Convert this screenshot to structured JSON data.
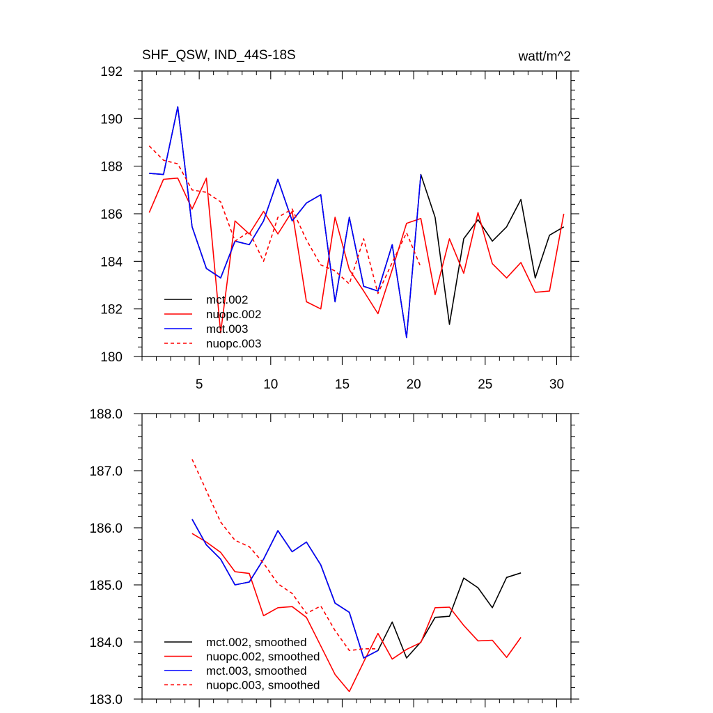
{
  "chart_data": [
    {
      "type": "line",
      "title_left": "SHF_QSW, IND_44S-18S",
      "title_right": "watt/m^2",
      "xlabel": "",
      "ylabel": "",
      "xlim": [
        1,
        31
      ],
      "ylim": [
        180,
        192
      ],
      "x_ticks": [
        5,
        10,
        15,
        20,
        25,
        30
      ],
      "x_tick_labels": [
        "5",
        "10",
        "15",
        "20",
        "25",
        "30"
      ],
      "y_ticks": [
        180,
        182,
        184,
        186,
        188,
        190,
        192
      ],
      "y_tick_labels": [
        "180",
        "182",
        "184",
        "186",
        "188",
        "190",
        "192"
      ],
      "legend_position": "bottom-left",
      "series": [
        {
          "name": "mct.002",
          "color": "#000000",
          "dash": false,
          "x": [
            1.5,
            2.5,
            3.5,
            4.5,
            5.5,
            6.5,
            7.5,
            8.5,
            9.5,
            10.5,
            11.5,
            12.5,
            13.5,
            14.5,
            15.5,
            16.5,
            17.5,
            18.5,
            19.5,
            20.5,
            21.5,
            22.5,
            23.5,
            24.5,
            25.5,
            26.5,
            27.5,
            28.5,
            29.5,
            30.5
          ],
          "values": [
            187.7,
            187.65,
            190.5,
            185.45,
            183.7,
            183.3,
            184.85,
            184.7,
            185.7,
            187.45,
            185.7,
            186.45,
            186.8,
            182.3,
            185.85,
            182.95,
            182.75,
            184.7,
            180.8,
            187.65,
            185.85,
            181.35,
            184.95,
            185.75,
            184.85,
            185.45,
            186.6,
            183.3,
            185.1,
            185.45
          ]
        },
        {
          "name": "nuopc.002",
          "color": "#ff0000",
          "dash": false,
          "x": [
            1.5,
            2.5,
            3.5,
            4.5,
            5.5,
            6.5,
            7.5,
            8.5,
            9.5,
            10.5,
            11.5,
            12.5,
            13.5,
            14.5,
            15.5,
            16.5,
            17.5,
            18.5,
            19.5,
            20.5,
            21.5,
            22.5,
            23.5,
            24.5,
            25.5,
            26.5,
            27.5,
            28.5,
            29.5,
            30.5
          ],
          "values": [
            186.05,
            187.45,
            187.5,
            186.2,
            187.5,
            181.0,
            185.7,
            185.15,
            186.1,
            185.15,
            186.1,
            182.3,
            182.0,
            185.85,
            183.65,
            182.75,
            181.8,
            183.65,
            185.6,
            185.8,
            182.6,
            184.95,
            183.5,
            186.05,
            183.9,
            183.3,
            183.95,
            182.7,
            182.75,
            186.0
          ]
        },
        {
          "name": "mct.003",
          "color": "#0000ff",
          "dash": false,
          "x": [
            1.5,
            2.5,
            3.5,
            4.5,
            5.5,
            6.5,
            7.5,
            8.5,
            9.5,
            10.5,
            11.5,
            12.5,
            13.5,
            14.5,
            15.5,
            16.5,
            17.5,
            18.5,
            19.5,
            20.5
          ],
          "values": [
            187.7,
            187.65,
            190.5,
            185.45,
            183.7,
            183.3,
            184.85,
            184.7,
            185.7,
            187.45,
            185.7,
            186.45,
            186.8,
            182.3,
            185.85,
            182.95,
            182.75,
            184.7,
            180.8,
            187.65
          ]
        },
        {
          "name": "nuopc.003",
          "color": "#ff0000",
          "dash": true,
          "x": [
            1.5,
            2.5,
            3.5,
            4.5,
            5.5,
            6.5,
            7.5,
            8.5,
            9.5,
            10.5,
            11.5,
            12.5,
            13.5,
            14.5,
            15.5,
            16.5,
            17.5,
            18.5,
            19.5,
            20.5
          ],
          "values": [
            188.85,
            188.25,
            188.1,
            187.0,
            186.9,
            186.5,
            184.85,
            185.25,
            184.0,
            185.85,
            186.2,
            184.9,
            183.85,
            183.6,
            183.05,
            184.95,
            182.65,
            183.95,
            185.2,
            183.75
          ]
        }
      ]
    },
    {
      "type": "line",
      "title_left": "",
      "title_right": "",
      "xlabel": "",
      "ylabel": "",
      "xlim": [
        1,
        31
      ],
      "ylim": [
        183,
        188
      ],
      "x_ticks": [
        5,
        10,
        15,
        20,
        25,
        30
      ],
      "x_tick_labels": [],
      "y_ticks": [
        183,
        184,
        185,
        186,
        187,
        188
      ],
      "y_tick_labels": [
        "183.0",
        "184.0",
        "185.0",
        "186.0",
        "187.0",
        "188.0"
      ],
      "legend_position": "bottom-left",
      "series": [
        {
          "name": "mct.002, smoothed",
          "color": "#000000",
          "dash": false,
          "x": [
            4.5,
            5.5,
            6.5,
            7.5,
            8.5,
            9.5,
            10.5,
            11.5,
            12.5,
            13.5,
            14.5,
            15.5,
            16.5,
            17.5,
            18.5,
            19.5,
            20.5,
            21.5,
            22.5,
            23.5,
            24.5,
            25.5,
            26.5,
            27.5
          ],
          "values": [
            186.15,
            185.7,
            185.45,
            185.0,
            185.05,
            185.45,
            185.95,
            185.58,
            185.75,
            185.35,
            184.68,
            184.52,
            183.72,
            183.85,
            184.35,
            183.72,
            184.0,
            184.43,
            184.45,
            185.12,
            184.95,
            184.6,
            185.13,
            185.21
          ]
        },
        {
          "name": "nuopc.002, smoothed",
          "color": "#ff0000",
          "dash": false,
          "x": [
            4.5,
            5.5,
            6.5,
            7.5,
            8.5,
            9.5,
            10.5,
            11.5,
            12.5,
            13.5,
            14.5,
            15.5,
            16.5,
            17.5,
            18.5,
            19.5,
            20.5,
            21.5,
            22.5,
            23.5,
            24.5,
            25.5,
            26.5,
            27.5
          ],
          "values": [
            185.9,
            185.75,
            185.57,
            185.23,
            185.2,
            184.46,
            184.6,
            184.62,
            184.43,
            183.93,
            183.43,
            183.13,
            183.65,
            184.15,
            183.7,
            183.87,
            183.99,
            184.6,
            184.61,
            184.29,
            184.02,
            184.03,
            183.73,
            184.08
          ]
        },
        {
          "name": "mct.003, smoothed",
          "color": "#0000ff",
          "dash": false,
          "x": [
            4.5,
            5.5,
            6.5,
            7.5,
            8.5,
            9.5,
            10.5,
            11.5,
            12.5,
            13.5,
            14.5,
            15.5,
            16.5,
            17.5
          ],
          "values": [
            186.15,
            185.7,
            185.45,
            185.0,
            185.05,
            185.45,
            185.95,
            185.58,
            185.75,
            185.35,
            184.68,
            184.52,
            183.72,
            183.85
          ]
        },
        {
          "name": "nuopc.003, smoothed",
          "color": "#ff0000",
          "dash": true,
          "x": [
            4.5,
            5.5,
            6.5,
            7.5,
            8.5,
            9.5,
            10.5,
            11.5,
            12.5,
            13.5,
            14.5,
            15.5,
            16.5,
            17.5
          ],
          "values": [
            187.2,
            186.65,
            186.1,
            185.78,
            185.67,
            185.38,
            185.02,
            184.85,
            184.5,
            184.63,
            184.2,
            183.85,
            183.88,
            183.88
          ]
        }
      ]
    }
  ]
}
